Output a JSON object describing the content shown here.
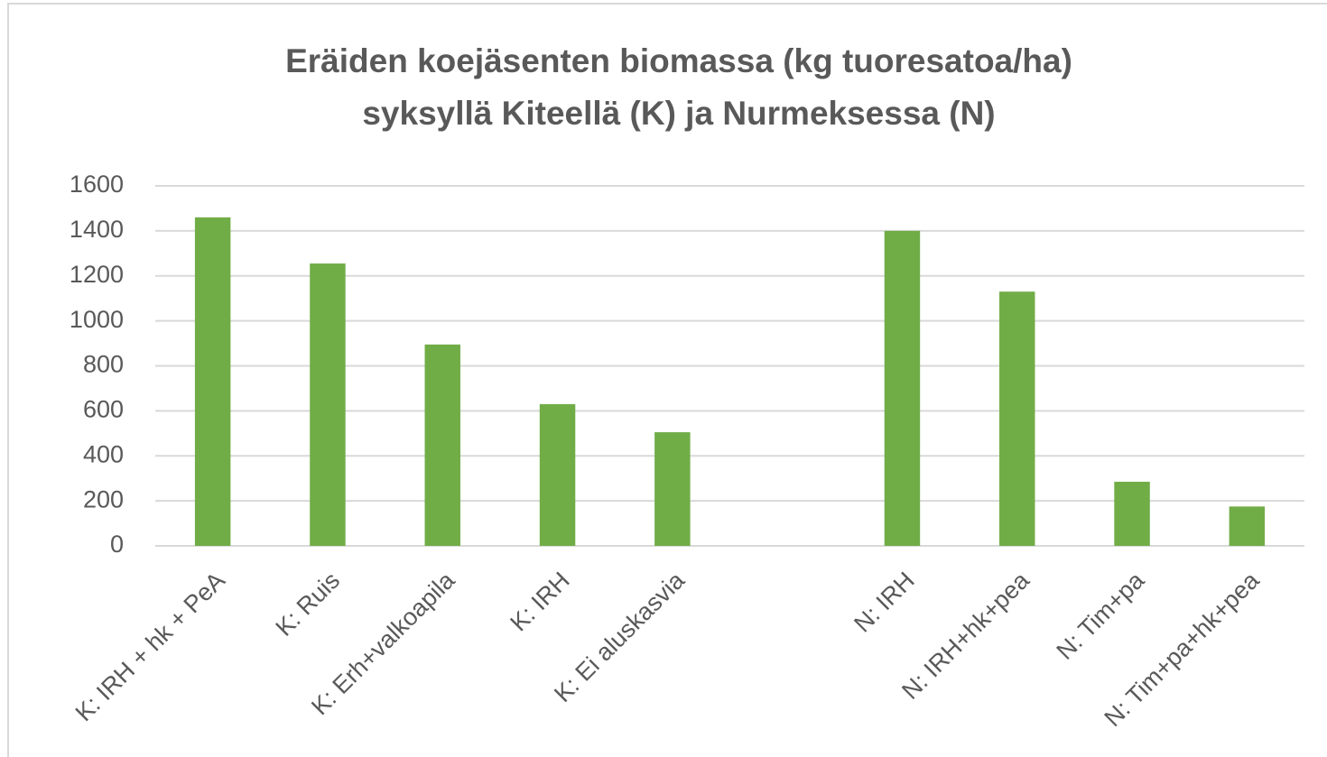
{
  "chart_data": {
    "type": "bar",
    "title": [
      "Eräiden koejäsenten biomassa (kg tuoresatoa/ha)",
      "syksyllä Kiteellä (K) ja Nurmeksessa (N)"
    ],
    "categories": [
      "K: IRH + hk + PeA",
      "K: Ruis",
      "K: Erh+valkoapila",
      "K: IRH",
      "K: Ei aluskasvia",
      null,
      "N: IRH",
      "N: IRH+hk+pea",
      "N: Tim+pa",
      "N: Tim+pa+hk+pea"
    ],
    "values": [
      1460,
      1255,
      895,
      630,
      505,
      null,
      1400,
      1130,
      285,
      175
    ],
    "color": "#70ad47",
    "ylim": [
      0,
      1600
    ],
    "yticks": [
      0,
      200,
      400,
      600,
      800,
      1000,
      1200,
      1400,
      1600
    ],
    "grid": true
  }
}
